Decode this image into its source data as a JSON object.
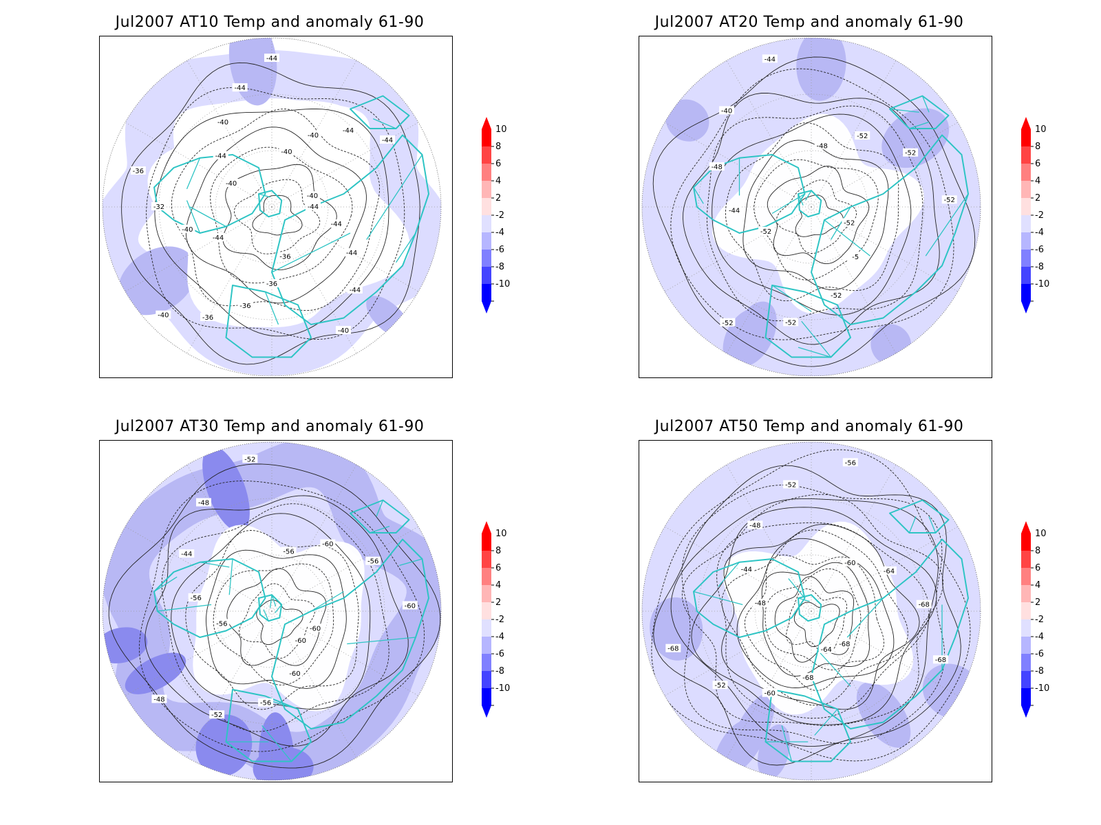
{
  "panels": [
    {
      "title": "Jul2007 AT10 Temp and anomaly 61-90",
      "shading": "light",
      "contour_labels": [
        "-44",
        "-44",
        "-44",
        "-44",
        "-40",
        "-36",
        "-36",
        "-36",
        "-36",
        "-40",
        "-44",
        "-40",
        "-32",
        "-36",
        "-40",
        "-44",
        "-40",
        "-44",
        "-44",
        "-40",
        "-40",
        "-44",
        "-44",
        "-40"
      ]
    },
    {
      "title": "Jul2007 AT20 Temp and anomaly 61-90",
      "shading": "medium",
      "contour_labels": [
        "-52",
        "-5",
        "-52",
        "-52",
        "-52",
        "-52",
        "-44",
        "-48",
        "-40",
        "-44",
        "-48",
        "-52",
        "-52",
        "-52"
      ]
    },
    {
      "title": "Jul2007 AT30 Temp and anomaly 61-90",
      "shading": "strong",
      "contour_labels": [
        "-60",
        "-60",
        "-56",
        "-52",
        "-48",
        "-56",
        "-56",
        "-44",
        "-48",
        "-52",
        "-56",
        "-60",
        "-56",
        "-60",
        "-60"
      ]
    },
    {
      "title": "Jul2007 AT50 Temp and anomaly 61-90",
      "shading": "medium",
      "contour_labels": [
        "-64",
        "-68",
        "-60",
        "-52",
        "-68",
        "-48",
        "-44",
        "-48",
        "-52",
        "-56",
        "-60",
        "-64",
        "-68",
        "-68",
        "-68"
      ]
    }
  ],
  "colorbar": {
    "labels": [
      "10",
      "8",
      "6",
      "4",
      "2",
      "-2",
      "-4",
      "-6",
      "-8",
      "-10"
    ],
    "colors": [
      "#ff0000",
      "#ff4444",
      "#ff8080",
      "#ffb6b6",
      "#ffe0e0",
      "#e0e0ff",
      "#b6b6ff",
      "#8080ff",
      "#4444ff",
      "#0000ff"
    ]
  },
  "colors": {
    "coastline": "#2ec4c4",
    "anomaly_light": "#dcdcff",
    "anomaly_mid": "#b8b8f4",
    "anomaly_strong": "#8a8aee",
    "contour": "#222222"
  }
}
